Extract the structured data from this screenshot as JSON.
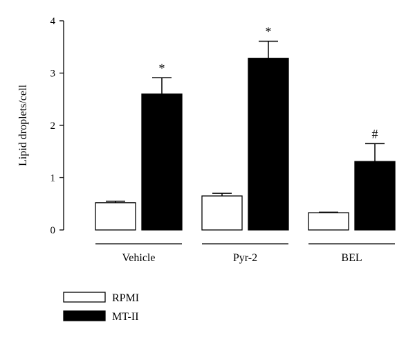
{
  "chart_data": {
    "type": "bar",
    "ylabel": "Lipid droplets/cell",
    "ylim": [
      0,
      4
    ],
    "yticks": [
      0,
      1,
      2,
      3,
      4
    ],
    "categories": [
      "Vehicle",
      "Pyr-2",
      "BEL"
    ],
    "series": [
      {
        "name": "RPMI",
        "values": [
          0.52,
          0.65,
          0.33
        ],
        "errors": [
          0.03,
          0.05,
          0.01
        ],
        "annotations": [
          "",
          "",
          ""
        ]
      },
      {
        "name": "MT-II",
        "values": [
          2.6,
          3.28,
          1.31
        ],
        "errors": [
          0.31,
          0.33,
          0.34
        ],
        "annotations": [
          "*",
          "*",
          "#"
        ]
      }
    ],
    "grid": false,
    "legend_position": "bottom-left",
    "colors": {
      "RPMI": "#ffffff",
      "MT-II": "#000000",
      "stroke": "#000000"
    }
  }
}
